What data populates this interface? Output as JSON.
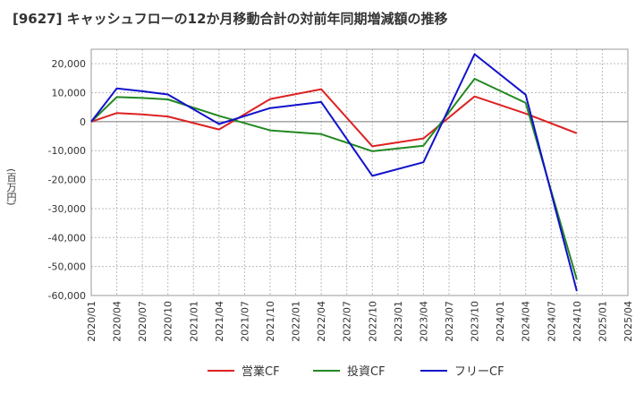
{
  "chart_data": {
    "type": "line",
    "title": "[9627]  キャッシュフローの12か月移動合計の対前年同期増減額の推移",
    "ylabel": "(百万円)",
    "xlabel": "",
    "x": [
      "2020/01",
      "2020/04",
      "2020/07",
      "2020/10",
      "2021/01",
      "2021/04",
      "2021/07",
      "2021/10",
      "2022/01",
      "2022/04",
      "2022/07",
      "2022/10",
      "2023/01",
      "2023/04",
      "2023/07",
      "2023/10",
      "2024/01",
      "2024/04",
      "2024/07",
      "2024/10",
      "2025/01",
      "2025/04"
    ],
    "ylim": [
      -60000,
      25000
    ],
    "yticks": [
      20000,
      10000,
      0,
      -10000,
      -20000,
      -30000,
      -40000,
      -50000,
      -60000
    ],
    "ytick_labels": [
      "20,000",
      "10,000",
      "0",
      "-10,000",
      "-20,000",
      "-30,000",
      "-40,000",
      "-50,000",
      "-60,000"
    ],
    "grid": true,
    "legend_position": "bottom",
    "series": [
      {
        "name": "営業CF",
        "color": "#dd2222",
        "values": [
          0,
          3000,
          2500,
          1800,
          null,
          -2700,
          null,
          7800,
          null,
          11200,
          null,
          -8500,
          null,
          -5800,
          null,
          8700,
          null,
          2800,
          null,
          -4000,
          null,
          null
        ]
      },
      {
        "name": "投資CF",
        "color": "#228822",
        "values": [
          0,
          8500,
          8200,
          7700,
          null,
          2000,
          null,
          -3000,
          null,
          -4300,
          null,
          -10200,
          null,
          -8300,
          null,
          14800,
          null,
          6500,
          null,
          -54500,
          null,
          null
        ]
      },
      {
        "name": "フリーCF",
        "color": "#1111cc",
        "values": [
          0,
          11500,
          10500,
          9400,
          null,
          -800,
          null,
          4700,
          null,
          6800,
          null,
          -18700,
          null,
          -14000,
          null,
          23300,
          null,
          9300,
          null,
          -58500,
          null,
          null
        ]
      }
    ]
  }
}
